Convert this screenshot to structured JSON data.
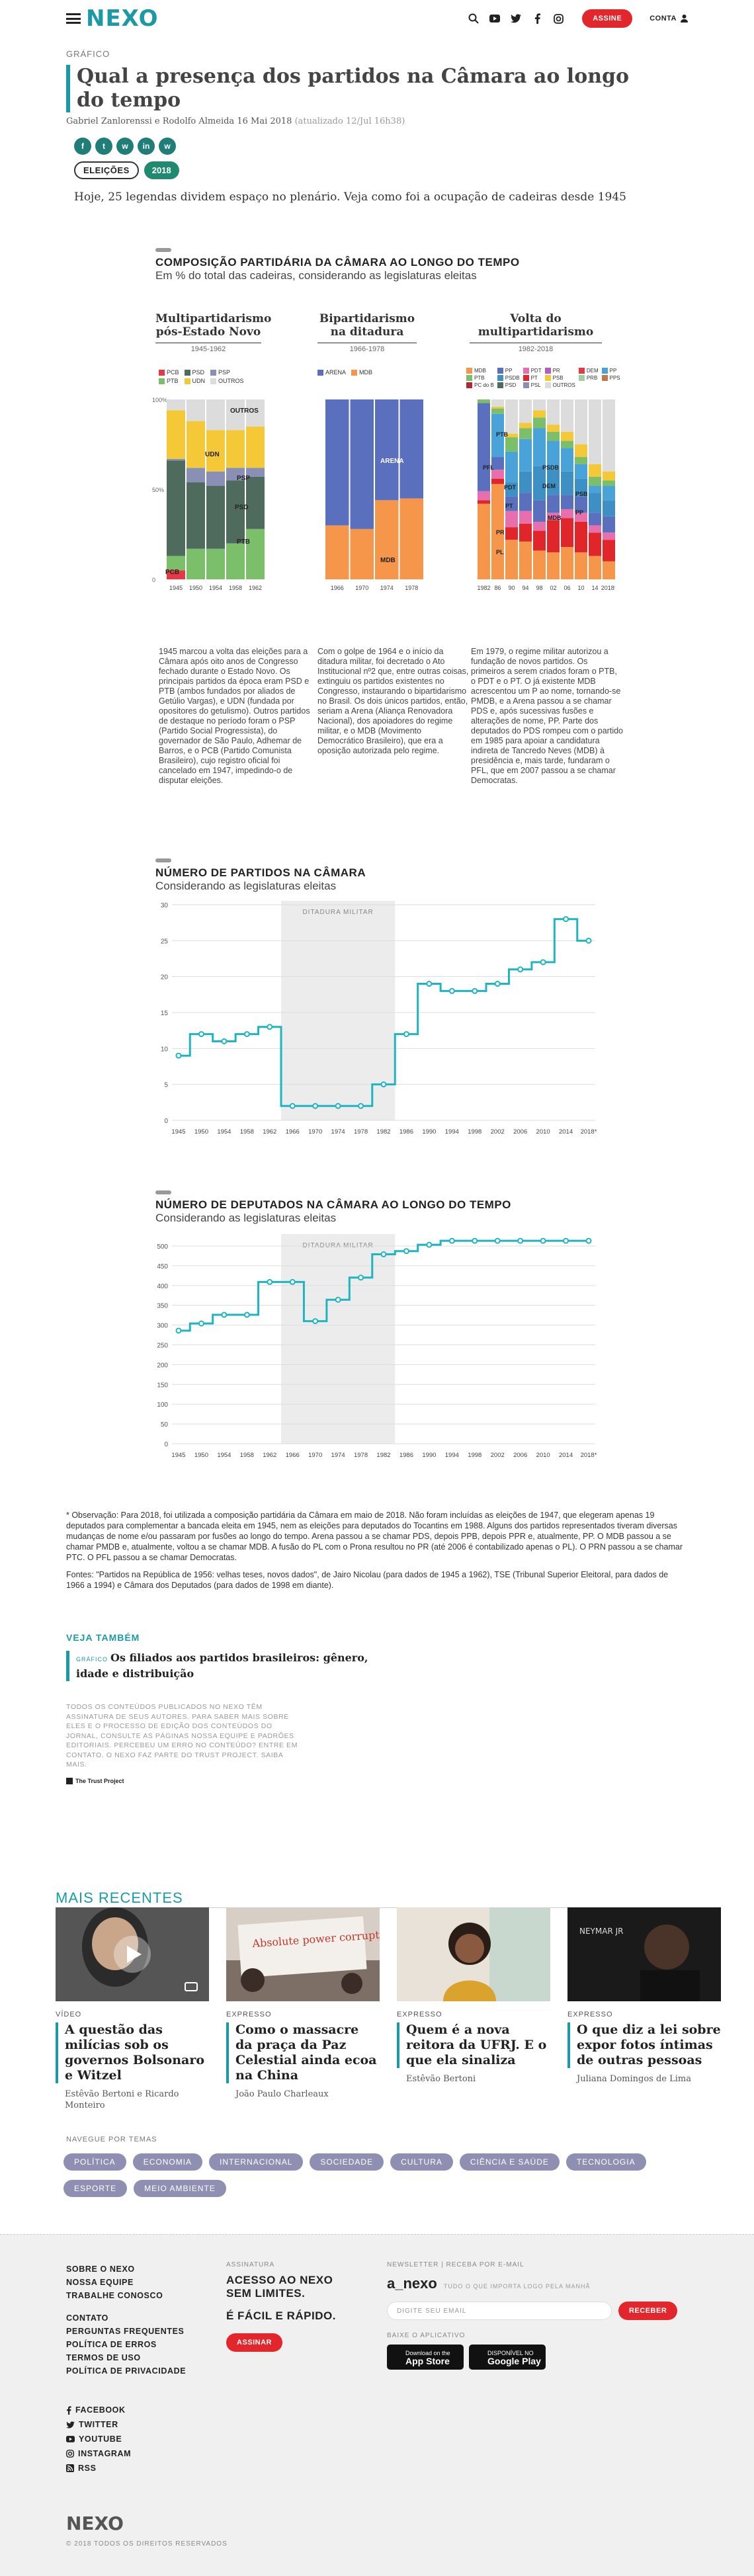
{
  "header": {
    "logo": "NEXO",
    "subscribe": "ASSINE",
    "account": "CONTA"
  },
  "article": {
    "kind": "GRÁFICO",
    "title": "Qual a presença dos partidos na Câmara ao longo do tempo",
    "authors": "Gabriel Zanlorenssi e Rodolfo Almeida",
    "date": "16 Mai 2018",
    "updated": "(atualizado 12/Jul 16h38)",
    "tags": [
      "ELEIÇÕES",
      "2018"
    ],
    "lede": "Hoje, 25 legendas dividem espaço no plenário. Veja como foi a ocupação de cadeiras desde 1945"
  },
  "share_icons": [
    "f",
    "t",
    "w",
    "in",
    "w"
  ],
  "composition": {
    "title": "COMPOSIÇÃO PARTIDÁRIA DA CÂMARA AO LONGO DO TEMPO",
    "subtitle": "Em % do total das cadeiras, considerando as legislaturas eleitas",
    "periods": [
      {
        "name": "Multipartidarismo pós-Estado Novo",
        "years": "1945-1962",
        "legend": [
          "PCB",
          "PSD",
          "PSP",
          "PTB",
          "UDN",
          "OUTROS"
        ],
        "ticks": [
          "1945",
          "1950",
          "1954",
          "1958",
          "1962"
        ],
        "labels": [
          "OUTROS",
          "UDN",
          "PSP",
          "PSD",
          "PTB",
          "PCB"
        ],
        "note": "1945 marcou a volta das eleições para a Câmara após oito anos de Congresso fechado durante o Estado Novo. Os principais partidos da época eram PSD e PTB (ambos fundados por aliados de Getúlio Vargas), e UDN (fundada por opositores do getulismo). Outros partidos de destaque no período foram o PSP (Partido Social Progressista), do governador de São Paulo, Adhemar de Barros, e o PCB (Partido Comunista Brasileiro), cujo registro oficial foi cancelado em 1947, impedindo-o de disputar eleições."
      },
      {
        "name": "Bipartidarismo na ditadura",
        "years": "1966-1978",
        "legend": [
          "ARENA",
          "MDB"
        ],
        "ticks": [
          "1966",
          "1970",
          "1974",
          "1978"
        ],
        "labels": [
          "ARENA",
          "MDB"
        ],
        "note": "Com o golpe de 1964 e o início da ditadura militar, foi decretado o Ato Institucional nº2 que, entre outras coisas, extinguiu os partidos existentes no Congresso, instaurando o bipartidarismo no Brasil. Os dois únicos partidos, então, seriam a Arena (Aliança Renovadora Nacional), dos apoiadores do regime militar, e o MDB (Movimento Democrático Brasileiro), que era a oposição autorizada pelo regime."
      },
      {
        "name": "Volta do multipartidarismo",
        "years": "1982-2018",
        "legend": [
          "MDB",
          "PP",
          "PDT",
          "PR",
          "DEM",
          "PP",
          "PTB",
          "PSDB",
          "PT",
          "PSB",
          "PRB",
          "PPS",
          "PC do B",
          "PSD",
          "PSL",
          "OUTROS"
        ],
        "ticks": [
          "1982",
          "86",
          "90",
          "94",
          "98",
          "02",
          "06",
          "10",
          "14",
          "2018*"
        ],
        "labels": [
          "PTB",
          "PFL",
          "PSDB",
          "DEM",
          "PSB",
          "PDT",
          "PT",
          "MDB",
          "PR",
          "PP",
          "PL"
        ],
        "note": "Em 1979, o regime militar autorizou a fundação de novos partidos. Os primeiros a serem criados foram o PTB, o PDT e o PT. O já existente MDB acrescentou um P ao nome, tornando-se PMDB, e a Arena passou a se chamar PDS e, após sucessivas fusões e alterações de nome, PP. Parte dos deputados do PDS rompeu com o partido em 1985 para apoiar a candidatura indireta de Tancredo Neves (MDB) à presidência e, mais tarde, fundaram o PFL, que em 2007 passou a se chamar Democratas."
      }
    ],
    "y_ticks": [
      "100%",
      "50%",
      "0"
    ],
    "chart_data": {
      "type": "bar",
      "stacked": true,
      "unit": "% of seats",
      "categories_period1": [
        "1945",
        "1950",
        "1954",
        "1958",
        "1962"
      ],
      "series_period1": [
        {
          "name": "PCB",
          "values": [
            5,
            0,
            0,
            0,
            0
          ]
        },
        {
          "name": "PTB",
          "values": [
            8,
            17,
            17,
            20,
            28
          ]
        },
        {
          "name": "PSD",
          "values": [
            53,
            37,
            35,
            35,
            29
          ]
        },
        {
          "name": "PSP",
          "values": [
            1,
            8,
            8,
            7,
            5
          ]
        },
        {
          "name": "UDN",
          "values": [
            27,
            26,
            23,
            21,
            23
          ]
        },
        {
          "name": "OUTROS",
          "values": [
            6,
            12,
            17,
            17,
            15
          ]
        }
      ],
      "categories_period2": [
        "1966",
        "1970",
        "1974",
        "1978"
      ],
      "series_period2": [
        {
          "name": "MDB",
          "values": [
            30,
            28,
            44,
            45
          ]
        },
        {
          "name": "ARENA",
          "values": [
            70,
            72,
            56,
            55
          ]
        }
      ],
      "categories_period3": [
        "1982",
        "86",
        "90",
        "94",
        "98",
        "02",
        "06",
        "10",
        "14",
        "2018*"
      ],
      "series_period3": [
        {
          "name": "MDB",
          "values": [
            42,
            53,
            22,
            21,
            16,
            15,
            18,
            15,
            13,
            10
          ]
        },
        {
          "name": "PT",
          "values": [
            2,
            3,
            7,
            10,
            11,
            18,
            16,
            17,
            13,
            12
          ]
        },
        {
          "name": "PDT",
          "values": [
            5,
            5,
            9,
            7,
            5,
            4,
            5,
            5,
            4,
            4
          ]
        },
        {
          "name": "PP",
          "values": [
            49,
            7,
            8,
            10,
            12,
            10,
            8,
            9,
            7,
            9
          ]
        },
        {
          "name": "PSDB",
          "values": [
            0,
            0,
            8,
            12,
            19,
            14,
            13,
            10,
            11,
            9
          ]
        },
        {
          "name": "DEM",
          "values": [
            0,
            24,
            17,
            18,
            21,
            16,
            13,
            8,
            4,
            8
          ]
        },
        {
          "name": "PTB",
          "values": [
            2,
            3,
            8,
            6,
            6,
            5,
            4,
            4,
            5,
            3
          ]
        },
        {
          "name": "PSB",
          "values": [
            0,
            1,
            2,
            3,
            4,
            4,
            5,
            7,
            7,
            5
          ]
        },
        {
          "name": "OUTROS",
          "values": [
            0,
            4,
            19,
            13,
            6,
            14,
            18,
            25,
            36,
            40
          ]
        }
      ]
    }
  },
  "parties_chart": {
    "title": "NÚMERO DE PARTIDOS NA CÂMARA",
    "subtitle": "Considerando as legislaturas eleitas",
    "band_label": "DITADURA MILITAR",
    "y_ticks": [
      "30",
      "25",
      "20",
      "15",
      "10",
      "5",
      "0"
    ],
    "chart_data": {
      "type": "line",
      "step": true,
      "x": [
        "1945",
        "1950",
        "1954",
        "1958",
        "1962",
        "1966",
        "1970",
        "1974",
        "1978",
        "1982",
        "1986",
        "1990",
        "1994",
        "1998",
        "2002",
        "2006",
        "2010",
        "2014",
        "2018*"
      ],
      "values": [
        9,
        12,
        11,
        12,
        13,
        2,
        2,
        2,
        2,
        5,
        12,
        19,
        18,
        18,
        19,
        21,
        22,
        28,
        25
      ],
      "ylim": [
        0,
        30
      ],
      "highlight_range": [
        "1964",
        "1985"
      ]
    }
  },
  "deputies_chart": {
    "title": "NÚMERO DE DEPUTADOS NA CÂMARA AO LONGO DO TEMPO",
    "subtitle": "Considerando as legislaturas eleitas",
    "band_label": "DITADURA MILITAR",
    "y_ticks": [
      "500",
      "450",
      "400",
      "350",
      "300",
      "250",
      "200",
      "150",
      "100",
      "50",
      "0"
    ],
    "chart_data": {
      "type": "line",
      "step": true,
      "x": [
        "1945",
        "1950",
        "1954",
        "1958",
        "1962",
        "1966",
        "1970",
        "1974",
        "1978",
        "1982",
        "1986",
        "1990",
        "1994",
        "1998",
        "2002",
        "2006",
        "2010",
        "2014",
        "2018*"
      ],
      "values": [
        286,
        304,
        326,
        326,
        409,
        409,
        310,
        364,
        420,
        479,
        487,
        503,
        513,
        513,
        513,
        513,
        513,
        513,
        513
      ],
      "ylim": [
        0,
        520
      ],
      "highlight_range": [
        "1964",
        "1985"
      ]
    }
  },
  "notes": [
    "* Observação: Para 2018, foi utilizada a composição partidária da Câmara em maio de 2018. Não foram incluídas as eleições de 1947, que elegeram apenas 19 deputados para complementar a bancada eleita em 1945, nem as eleições para deputados do Tocantins em 1988. Alguns dos partidos representados tiveram diversas mudanças de nome e/ou passaram por fusões ao longo do tempo. Arena passou a se chamar PDS, depois PPB, depois PPR e, atualmente, PP. O MDB passou a se chamar PMDB e, atualmente, voltou a se chamar MDB. A fusão do PL com o Prona resultou no PR (até 2006 é contabilizado apenas o PL). O PRN passou a se chamar PTC. O PFL passou a se chamar Democratas.",
    "Fontes: \"Partidos na República de 1956: velhas teses, novos dados\", de Jairo Nicolau (para dados de 1945 a 1962), TSE (Tribunal Superior Eleitoral, para dados de 1966 a 1994) e Câmara dos Deputados (para dados de 1998 em diante)."
  ],
  "see_also": {
    "title": "VEJA TAMBÉM",
    "kind": "GRÁFICO",
    "text": "Os filiados aos partidos brasileiros: gênero, idade e distribuição"
  },
  "trust_text": "TODOS OS CONTEÚDOS PUBLICADOS NO NEXO TÊM ASSINATURA DE SEUS AUTORES. PARA SABER MAIS SOBRE ELES E O PROCESSO DE EDIÇÃO DOS CONTEÚDOS DO JORNAL, CONSULTE AS PÁGINAS NOSSA EQUIPE E PADRÕES EDITORIAIS. PERCEBEU UM ERRO NO CONTEÚDO? ENTRE EM CONTATO. O NEXO FAZ PARTE DO TRUST PROJECT. SAIBA MAIS.",
  "trust_logo": "The Trust Project",
  "recent": {
    "title": "MAIS RECENTES",
    "cards": [
      {
        "kind": "VÍDEO",
        "title": "A questão das milícias sob os governos Bolsonaro e Witzel",
        "author": "Estêvão Bertoni e Ricardo Monteiro"
      },
      {
        "kind": "EXPRESSO",
        "title": "Como o massacre da praça da Paz Celestial ainda ecoa na China",
        "author": "João Paulo Charleaux"
      },
      {
        "kind": "EXPRESSO",
        "title": "Quem é a nova reitora da UFRJ. E o que ela sinaliza",
        "author": "Estêvão Bertoni"
      },
      {
        "kind": "EXPRESSO",
        "title": "O que diz a lei sobre expor fotos íntimas de outras pessoas",
        "author": "Juliana Domingos de Lima"
      }
    ],
    "sign_text": "Absolute power corrupts absolutely",
    "poster_text": "NEYMAR JR"
  },
  "nav": {
    "title": "NAVEGUE POR TEMAS",
    "pills": [
      "POLÍTICA",
      "ECONOMIA",
      "INTERNACIONAL",
      "SOCIEDADE",
      "CULTURA",
      "CIÊNCIA E SAÚDE",
      "TECNOLOGIA",
      "ESPORTE",
      "MEIO AMBIENTE"
    ]
  },
  "footer": {
    "links1": [
      "SOBRE O NEXO",
      "NOSSA EQUIPE",
      "TRABALHE CONOSCO"
    ],
    "links2": [
      "CONTATO",
      "PERGUNTAS FREQUENTES",
      "POLÍTICA DE ERROS",
      "TERMOS DE USO",
      "POLÍTICA DE PRIVACIDADE"
    ],
    "social": [
      "FACEBOOK",
      "TWITTER",
      "YOUTUBE",
      "INSTAGRAM",
      "RSS"
    ],
    "subscription_label": "ASSINATURA",
    "subscription_text": "ACESSO AO NEXO SEM LIMITES.",
    "subscription_text2": "É FÁCIL E RÁPIDO.",
    "subscribe_button": "ASSINAR",
    "newsletter_label": "NEWSLETTER | RECEBA POR E-MAIL",
    "newsletter_name": "a_nexo",
    "newsletter_tagline": "TUDO O QUE IMPORTA LOGO PELA MANHÃ",
    "email_placeholder": "DIGITE SEU EMAIL",
    "receive_button": "RECEBER",
    "app_label": "BAIXE O APLICATIVO",
    "appstore_small": "Download on the",
    "appstore": "App Store",
    "googleplay_small": "DISPONÍVEL NO",
    "googleplay": "Google Play",
    "logo": "NEXO",
    "copyright": "© 2018 TODOS OS DIREITOS RESERVADOS"
  },
  "colors": {
    "accent": "#1a9aa5",
    "red": "#e3262b",
    "PCB": "#e63946",
    "PSD": "#4f6b5e",
    "PSP": "#8a8fb5",
    "PTB": "#7cbf6a",
    "UDN": "#f5c838",
    "OUTROS": "#dcdcdc",
    "ARENA": "#5b6fbf",
    "MDB": "#f5964a"
  }
}
